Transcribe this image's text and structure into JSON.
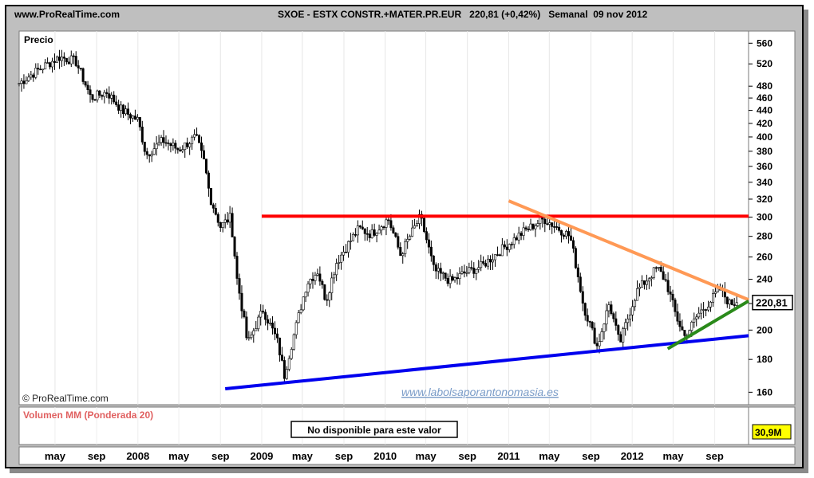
{
  "header": {
    "site": "www.ProRealTime.com",
    "title": "SXOE - ESTX CONSTR.+MATER.PR.EUR   220,81 (+0,42%)   Semanal  09 nov 2012"
  },
  "chart_data": {
    "type": "candlestick",
    "series_label": "Precio",
    "last_value_label": "220,81",
    "watermark_text": "© ProRealTime.com",
    "site_text": "www.labolsaporantonomasia.es",
    "y_ticks": [
      160,
      180,
      200,
      220,
      240,
      260,
      280,
      300,
      320,
      340,
      360,
      380,
      400,
      420,
      440,
      460,
      480,
      520,
      560
    ],
    "y_scale": "log",
    "ylim": [
      153,
      585
    ],
    "x_ticks": [
      "may",
      "sep",
      "2008",
      "may",
      "sep",
      "2009",
      "may",
      "sep",
      "2010",
      "may",
      "sep",
      "2011",
      "may",
      "sep",
      "2012",
      "may",
      "sep"
    ],
    "x_tick_dates": [
      "2007-05-01",
      "2007-09-01",
      "2008-01-01",
      "2008-05-01",
      "2008-09-01",
      "2009-01-01",
      "2009-05-01",
      "2009-09-01",
      "2010-01-01",
      "2010-05-01",
      "2010-09-01",
      "2011-01-01",
      "2011-05-01",
      "2011-09-01",
      "2012-01-01",
      "2012-05-01",
      "2012-09-01"
    ],
    "xlim": [
      "2007-01-15",
      "2012-12-10"
    ],
    "price_anchors": [
      {
        "date": "2007-01-15",
        "value": 485
      },
      {
        "date": "2007-03-20",
        "value": 512
      },
      {
        "date": "2007-05-15",
        "value": 533
      },
      {
        "date": "2007-07-01",
        "value": 525
      },
      {
        "date": "2007-08-15",
        "value": 460
      },
      {
        "date": "2007-10-01",
        "value": 470
      },
      {
        "date": "2007-11-15",
        "value": 440
      },
      {
        "date": "2008-01-01",
        "value": 425
      },
      {
        "date": "2008-01-25",
        "value": 375
      },
      {
        "date": "2008-03-15",
        "value": 395
      },
      {
        "date": "2008-05-01",
        "value": 382
      },
      {
        "date": "2008-06-20",
        "value": 400
      },
      {
        "date": "2008-07-15",
        "value": 365
      },
      {
        "date": "2008-08-01",
        "value": 322
      },
      {
        "date": "2008-09-01",
        "value": 290
      },
      {
        "date": "2008-10-01",
        "value": 300
      },
      {
        "date": "2008-10-20",
        "value": 240
      },
      {
        "date": "2008-11-20",
        "value": 190
      },
      {
        "date": "2009-01-05",
        "value": 215
      },
      {
        "date": "2009-02-15",
        "value": 193
      },
      {
        "date": "2009-03-09",
        "value": 170
      },
      {
        "date": "2009-04-15",
        "value": 205
      },
      {
        "date": "2009-05-15",
        "value": 237
      },
      {
        "date": "2009-06-15",
        "value": 247
      },
      {
        "date": "2009-07-10",
        "value": 222
      },
      {
        "date": "2009-08-10",
        "value": 255
      },
      {
        "date": "2009-10-15",
        "value": 288
      },
      {
        "date": "2009-11-20",
        "value": 282
      },
      {
        "date": "2010-01-10",
        "value": 298
      },
      {
        "date": "2010-02-15",
        "value": 262
      },
      {
        "date": "2010-04-15",
        "value": 300
      },
      {
        "date": "2010-05-25",
        "value": 248
      },
      {
        "date": "2010-07-15",
        "value": 238
      },
      {
        "date": "2010-08-20",
        "value": 245
      },
      {
        "date": "2010-10-15",
        "value": 252
      },
      {
        "date": "2010-12-15",
        "value": 268
      },
      {
        "date": "2011-02-15",
        "value": 285
      },
      {
        "date": "2011-04-15",
        "value": 298
      },
      {
        "date": "2011-05-20",
        "value": 290
      },
      {
        "date": "2011-07-01",
        "value": 280
      },
      {
        "date": "2011-08-10",
        "value": 218
      },
      {
        "date": "2011-09-20",
        "value": 188
      },
      {
        "date": "2011-10-25",
        "value": 220
      },
      {
        "date": "2011-11-25",
        "value": 190
      },
      {
        "date": "2012-01-15",
        "value": 230
      },
      {
        "date": "2012-03-15",
        "value": 250
      },
      {
        "date": "2012-04-10",
        "value": 238
      },
      {
        "date": "2012-05-10",
        "value": 210
      },
      {
        "date": "2012-06-05",
        "value": 195
      },
      {
        "date": "2012-07-15",
        "value": 212
      },
      {
        "date": "2012-08-20",
        "value": 222
      },
      {
        "date": "2012-09-15",
        "value": 232
      },
      {
        "date": "2012-10-15",
        "value": 220
      },
      {
        "date": "2012-11-09",
        "value": 220.81
      }
    ],
    "trendlines": [
      {
        "name": "resistance",
        "color": "#ff0000",
        "from": {
          "date": "2009-01-01",
          "value": 301
        },
        "to": {
          "date": "2012-12-10",
          "value": 301
        }
      },
      {
        "name": "support",
        "color": "#0000ee",
        "from": {
          "date": "2008-09-15",
          "value": 162
        },
        "to": {
          "date": "2012-12-10",
          "value": 196
        }
      },
      {
        "name": "descending",
        "color": "#ff9955",
        "from": {
          "date": "2011-01-01",
          "value": 318
        },
        "to": {
          "date": "2012-12-10",
          "value": 223
        }
      },
      {
        "name": "ascending",
        "color": "#2a8a1a",
        "from": {
          "date": "2012-04-15",
          "value": 187
        },
        "to": {
          "date": "2012-12-10",
          "value": 222
        }
      }
    ]
  },
  "volume_panel": {
    "label": "Volumen MM (Ponderada 20)",
    "notice": "No disponible para este valor",
    "last_value_label": "30,9M"
  }
}
